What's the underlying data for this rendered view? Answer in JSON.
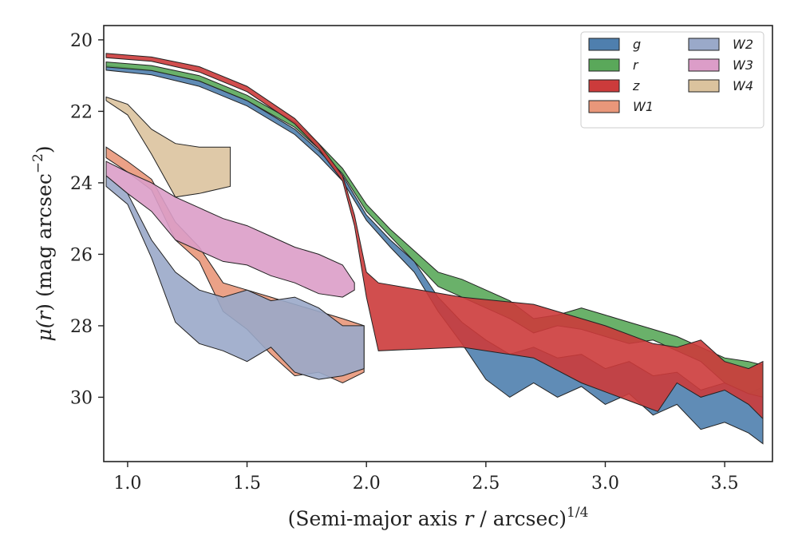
{
  "chart_data": {
    "type": "area",
    "title": "",
    "xlabel": "(Semi-major axis r / arcsec)^1/4",
    "xlabel_parts": {
      "pre": "(Semi-major axis ",
      "var": "r",
      "post": " / arcsec)",
      "sup": "1/4"
    },
    "ylabel": "μ(r) (mag arcsec^−2)",
    "ylabel_parts": {
      "var_pre": "μ(",
      "var": "r",
      "var_post": ")",
      "pre": " (mag arcsec",
      "sup": "−2",
      "post": ")"
    },
    "xlim": [
      0.9,
      3.7
    ],
    "ylim": [
      31.8,
      19.6
    ],
    "y_inverted": true,
    "xticks": [
      1.0,
      1.5,
      2.0,
      2.5,
      3.0,
      3.5
    ],
    "xtick_labels": [
      "1.0",
      "1.5",
      "2.0",
      "2.5",
      "3.0",
      "3.5"
    ],
    "yticks": [
      20,
      22,
      24,
      26,
      28,
      30
    ],
    "ytick_labels": [
      "20",
      "22",
      "24",
      "26",
      "28",
      "30"
    ],
    "grid": false,
    "legend_position": "top-right",
    "legend_columns": 2,
    "series": [
      {
        "name": "g",
        "color": "#4f7fae",
        "upper": [
          [
            0.91,
            20.72
          ],
          [
            1.1,
            20.85
          ],
          [
            1.3,
            21.15
          ],
          [
            1.5,
            21.7
          ],
          [
            1.7,
            22.5
          ],
          [
            1.8,
            23.1
          ],
          [
            1.9,
            23.8
          ],
          [
            2.0,
            24.9
          ],
          [
            2.1,
            25.6
          ],
          [
            2.2,
            26.2
          ],
          [
            2.3,
            27.2
          ],
          [
            2.4,
            27.9
          ],
          [
            2.5,
            28.4
          ],
          [
            2.6,
            28.8
          ],
          [
            2.7,
            28.6
          ],
          [
            2.8,
            28.9
          ],
          [
            2.9,
            28.8
          ],
          [
            3.0,
            29.2
          ],
          [
            3.1,
            29.0
          ],
          [
            3.2,
            29.4
          ],
          [
            3.3,
            29.3
          ],
          [
            3.4,
            29.8
          ],
          [
            3.5,
            29.6
          ],
          [
            3.6,
            29.9
          ],
          [
            3.66,
            29.7
          ]
        ],
        "lower": [
          [
            0.91,
            20.85
          ],
          [
            1.1,
            20.98
          ],
          [
            1.3,
            21.3
          ],
          [
            1.5,
            21.85
          ],
          [
            1.7,
            22.65
          ],
          [
            1.8,
            23.25
          ],
          [
            1.9,
            23.95
          ],
          [
            2.0,
            25.05
          ],
          [
            2.1,
            25.8
          ],
          [
            2.2,
            26.5
          ],
          [
            2.3,
            27.6
          ],
          [
            2.4,
            28.5
          ],
          [
            2.5,
            29.5
          ],
          [
            2.6,
            30.0
          ],
          [
            2.7,
            29.6
          ],
          [
            2.8,
            30.0
          ],
          [
            2.9,
            29.7
          ],
          [
            3.0,
            30.2
          ],
          [
            3.1,
            29.9
          ],
          [
            3.2,
            30.5
          ],
          [
            3.3,
            30.2
          ],
          [
            3.4,
            30.9
          ],
          [
            3.5,
            30.7
          ],
          [
            3.6,
            31.0
          ],
          [
            3.66,
            31.3
          ]
        ]
      },
      {
        "name": "r",
        "color": "#5aa85a",
        "upper": [
          [
            0.91,
            20.62
          ],
          [
            1.1,
            20.72
          ],
          [
            1.3,
            21.0
          ],
          [
            1.5,
            21.55
          ],
          [
            1.7,
            22.3
          ],
          [
            1.8,
            22.9
          ],
          [
            1.9,
            23.6
          ],
          [
            2.0,
            24.6
          ],
          [
            2.1,
            25.3
          ],
          [
            2.2,
            25.9
          ],
          [
            2.3,
            26.5
          ],
          [
            2.4,
            26.7
          ],
          [
            2.5,
            27.0
          ],
          [
            2.6,
            27.3
          ],
          [
            2.7,
            27.8
          ],
          [
            2.8,
            27.7
          ],
          [
            2.9,
            27.5
          ],
          [
            3.0,
            27.7
          ],
          [
            3.1,
            27.9
          ],
          [
            3.2,
            28.1
          ],
          [
            3.3,
            28.3
          ],
          [
            3.4,
            28.6
          ],
          [
            3.5,
            28.9
          ],
          [
            3.6,
            29.0
          ],
          [
            3.66,
            29.1
          ]
        ],
        "lower": [
          [
            0.91,
            20.76
          ],
          [
            1.1,
            20.86
          ],
          [
            1.3,
            21.15
          ],
          [
            1.5,
            21.7
          ],
          [
            1.7,
            22.45
          ],
          [
            1.8,
            23.05
          ],
          [
            1.9,
            23.75
          ],
          [
            2.0,
            24.8
          ],
          [
            2.1,
            25.5
          ],
          [
            2.2,
            26.2
          ],
          [
            2.3,
            26.9
          ],
          [
            2.4,
            27.2
          ],
          [
            2.5,
            27.5
          ],
          [
            2.6,
            27.8
          ],
          [
            2.7,
            28.2
          ],
          [
            2.8,
            28.0
          ],
          [
            2.9,
            28.1
          ],
          [
            3.0,
            28.3
          ],
          [
            3.1,
            28.5
          ],
          [
            3.2,
            28.4
          ],
          [
            3.3,
            28.7
          ],
          [
            3.4,
            29.0
          ],
          [
            3.5,
            29.6
          ],
          [
            3.6,
            29.9
          ],
          [
            3.66,
            30.0
          ]
        ]
      },
      {
        "name": "z",
        "color": "#cc3b3b",
        "upper": [
          [
            0.91,
            20.38
          ],
          [
            1.1,
            20.48
          ],
          [
            1.3,
            20.75
          ],
          [
            1.5,
            21.3
          ],
          [
            1.7,
            22.2
          ],
          [
            1.8,
            22.9
          ],
          [
            1.9,
            23.8
          ],
          [
            1.95,
            24.9
          ],
          [
            2.0,
            26.5
          ],
          [
            2.05,
            26.8
          ],
          [
            2.4,
            27.2
          ],
          [
            2.7,
            27.4
          ],
          [
            3.0,
            28.0
          ],
          [
            3.2,
            28.5
          ],
          [
            3.3,
            28.6
          ],
          [
            3.4,
            28.4
          ],
          [
            3.5,
            29.0
          ],
          [
            3.6,
            29.2
          ],
          [
            3.66,
            29.0
          ]
        ],
        "lower": [
          [
            0.91,
            20.5
          ],
          [
            1.1,
            20.6
          ],
          [
            1.3,
            20.9
          ],
          [
            1.5,
            21.45
          ],
          [
            1.7,
            22.35
          ],
          [
            1.8,
            23.05
          ],
          [
            1.9,
            23.95
          ],
          [
            1.95,
            25.2
          ],
          [
            2.0,
            27.2
          ],
          [
            2.05,
            28.7
          ],
          [
            2.4,
            28.6
          ],
          [
            2.7,
            28.9
          ],
          [
            2.9,
            29.6
          ],
          [
            3.1,
            30.1
          ],
          [
            3.22,
            30.4
          ],
          [
            3.3,
            29.6
          ],
          [
            3.4,
            30.0
          ],
          [
            3.5,
            29.8
          ],
          [
            3.6,
            30.2
          ],
          [
            3.66,
            30.6
          ]
        ]
      },
      {
        "name": "W1",
        "color": "#e9977a",
        "upper": [
          [
            0.91,
            23.0
          ],
          [
            1.0,
            23.4
          ],
          [
            1.1,
            23.9
          ],
          [
            1.2,
            25.1
          ],
          [
            1.3,
            25.8
          ],
          [
            1.4,
            26.8
          ],
          [
            1.5,
            27.0
          ],
          [
            1.6,
            27.2
          ],
          [
            1.7,
            27.4
          ],
          [
            1.8,
            27.6
          ],
          [
            1.9,
            27.8
          ],
          [
            1.99,
            28.0
          ]
        ],
        "lower": [
          [
            0.91,
            23.3
          ],
          [
            1.0,
            23.7
          ],
          [
            1.1,
            24.2
          ],
          [
            1.2,
            25.6
          ],
          [
            1.3,
            26.2
          ],
          [
            1.4,
            27.6
          ],
          [
            1.5,
            28.1
          ],
          [
            1.6,
            28.8
          ],
          [
            1.7,
            29.4
          ],
          [
            1.8,
            29.3
          ],
          [
            1.9,
            29.6
          ],
          [
            1.99,
            29.3
          ]
        ]
      },
      {
        "name": "W2",
        "color": "#9aa9c9",
        "upper": [
          [
            0.91,
            23.8
          ],
          [
            1.0,
            24.3
          ],
          [
            1.1,
            25.6
          ],
          [
            1.2,
            26.5
          ],
          [
            1.3,
            27.0
          ],
          [
            1.4,
            27.2
          ],
          [
            1.5,
            27.0
          ],
          [
            1.6,
            27.3
          ],
          [
            1.7,
            27.2
          ],
          [
            1.8,
            27.5
          ],
          [
            1.9,
            28.0
          ],
          [
            1.99,
            28.0
          ]
        ],
        "lower": [
          [
            0.91,
            24.1
          ],
          [
            1.0,
            24.6
          ],
          [
            1.1,
            26.1
          ],
          [
            1.2,
            27.9
          ],
          [
            1.3,
            28.5
          ],
          [
            1.4,
            28.7
          ],
          [
            1.5,
            29.0
          ],
          [
            1.6,
            28.6
          ],
          [
            1.7,
            29.3
          ],
          [
            1.8,
            29.5
          ],
          [
            1.9,
            29.4
          ],
          [
            1.99,
            29.2
          ]
        ]
      },
      {
        "name": "W3",
        "color": "#dc9dc8",
        "upper": [
          [
            0.91,
            23.4
          ],
          [
            1.0,
            23.7
          ],
          [
            1.1,
            24.0
          ],
          [
            1.2,
            24.4
          ],
          [
            1.3,
            24.7
          ],
          [
            1.4,
            25.0
          ],
          [
            1.5,
            25.2
          ],
          [
            1.6,
            25.5
          ],
          [
            1.7,
            25.8
          ],
          [
            1.8,
            26.0
          ],
          [
            1.9,
            26.3
          ],
          [
            1.95,
            26.8
          ]
        ],
        "lower": [
          [
            0.91,
            23.8
          ],
          [
            1.0,
            24.3
          ],
          [
            1.1,
            24.8
          ],
          [
            1.2,
            25.6
          ],
          [
            1.3,
            25.9
          ],
          [
            1.4,
            26.2
          ],
          [
            1.5,
            26.3
          ],
          [
            1.6,
            26.6
          ],
          [
            1.7,
            26.8
          ],
          [
            1.8,
            27.1
          ],
          [
            1.9,
            27.2
          ],
          [
            1.95,
            27.0
          ]
        ]
      },
      {
        "name": "W4",
        "color": "#dbc39e",
        "upper": [
          [
            0.91,
            21.6
          ],
          [
            1.0,
            21.8
          ],
          [
            1.1,
            22.5
          ],
          [
            1.2,
            22.9
          ],
          [
            1.3,
            23.0
          ],
          [
            1.43,
            23.0
          ]
        ],
        "lower": [
          [
            0.91,
            21.7
          ],
          [
            1.0,
            22.1
          ],
          [
            1.1,
            23.2
          ],
          [
            1.2,
            24.4
          ],
          [
            1.3,
            24.3
          ],
          [
            1.43,
            24.1
          ]
        ]
      }
    ]
  }
}
